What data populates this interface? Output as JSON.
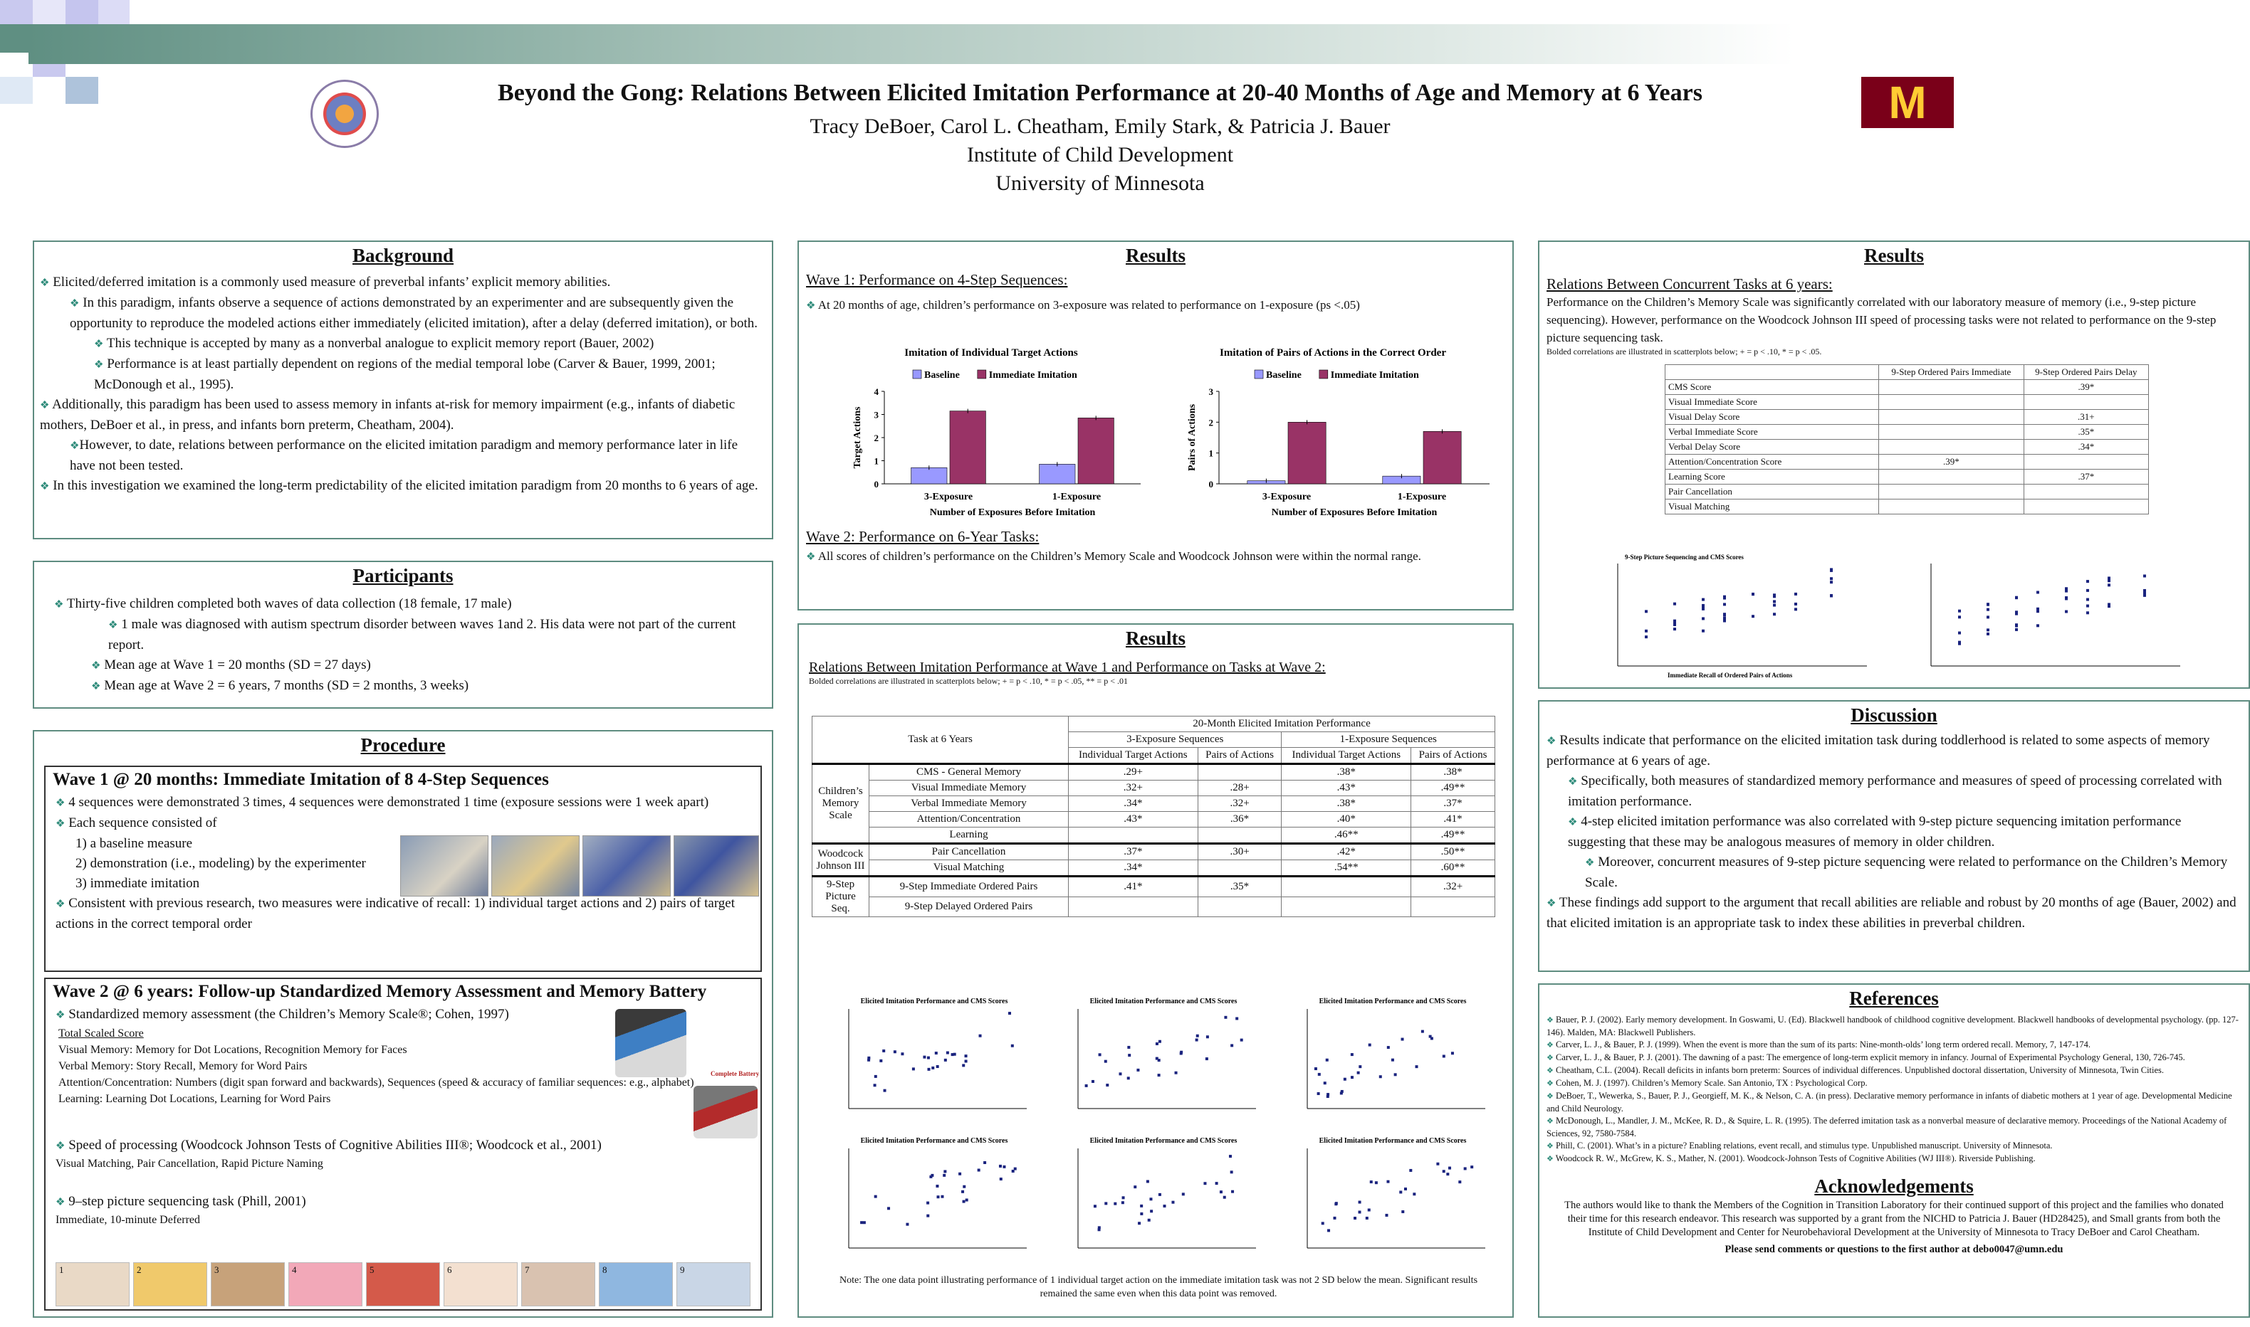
{
  "header": {
    "title": "Beyond the Gong: Relations Between Elicited Imitation Performance at 20-40 Months of Age and Memory at 6 Years",
    "authors": "Tracy DeBoer, Carol L. Cheatham, Emily Stark, & Patricia J. Bauer",
    "institute": "Institute of Child Development",
    "university": "University of Minnesota",
    "logo_right": "M"
  },
  "background": {
    "heading": "Background",
    "items": [
      "Elicited/deferred imitation is a commonly used measure of preverbal infants’ explicit memory abilities.",
      "In this paradigm, infants observe a sequence of actions demonstrated by an experimenter and are subsequently given the opportunity to reproduce the modeled actions either immediately (elicited imitation), after a delay (deferred imitation), or both.",
      "This technique is accepted by many as a nonverbal analogue to explicit memory report (Bauer, 2002)",
      "Performance is at least partially dependent on regions of the medial temporal lobe (Carver & Bauer, 1999, 2001; McDonough et al., 1995).",
      "Additionally, this paradigm has been used to assess memory in infants at-risk for memory impairment (e.g., infants of diabetic mothers, DeBoer et al., in press, and infants born preterm, Cheatham, 2004).",
      "However, to date, relations between performance on the elicited imitation paradigm and memory performance later in life have not been tested.",
      "In this investigation we examined the long-term predictability of the elicited imitation paradigm from 20 months to 6 years of age."
    ]
  },
  "participants": {
    "heading": "Participants",
    "items": [
      "Thirty-five children completed both waves of data collection (18 female, 17 male)",
      "1 male was diagnosed with autism spectrum disorder between waves 1and 2. His data were not part of the current report.",
      "Mean age at Wave 1 = 20 months (SD = 27 days)",
      "Mean age at Wave 2 =  6 years, 7 months (SD = 2 months, 3 weeks)"
    ]
  },
  "procedure": {
    "heading": "Procedure",
    "wave1": {
      "heading": "Wave 1 @ 20 months: Immediate Imitation of  8 4-Step Sequences",
      "items": [
        "4 sequences were demonstrated 3 times, 4 sequences were demonstrated 1 time (exposure sessions were 1 week apart)",
        "Each sequence consisted of",
        "1)  a baseline measure",
        "2)  demonstration (i.e., modeling) by the experimenter",
        "3)  immediate imitation",
        "Consistent with previous research, two measures were indicative of  recall: 1) individual target actions and 2) pairs of  target actions in the correct temporal order"
      ]
    },
    "wave2": {
      "heading": "Wave 2 @ 6 years: Follow-up Standardized Memory Assessment and Memory Battery",
      "item1": "Standardized memory assessment (the Children’s Memory Scale®; Cohen, 1997)",
      "lines": [
        "Total Scaled Score",
        "Visual Memory:  Memory for Dot Locations, Recognition Memory for Faces",
        "Verbal Memory:  Story Recall, Memory for Word Pairs",
        "Attention/Concentration:  Numbers (digit span forward and backwards), Sequences (speed & accuracy of familiar sequences: e.g., alphabet)",
        "Learning:  Learning Dot Locations, Learning for Word Pairs"
      ],
      "item2": "Speed of processing (Woodcock Johnson Tests of Cognitive Abilities III®; Woodcock et al., 2001)",
      "item2_sub": "Visual Matching, Pair Cancellation, Rapid Picture Naming",
      "item3": "9–step picture sequencing task (Phill, 2001)",
      "item3_sub": "Immediate, 10-minute Deferred",
      "kit_caption": "Complete Battery",
      "step_numbers": [
        "1",
        "2",
        "3",
        "4",
        "5",
        "6",
        "7",
        "8",
        "9"
      ]
    }
  },
  "results1": {
    "heading": "Results",
    "wave1_heading": "Wave 1:  Performance on 4-Step Sequences:",
    "wave1_item": "At 20 months of age, children’s performance on 3-exposure was related to performance on 1-exposure (ps <.05)",
    "wave2_heading": "Wave 2:  Performance on 6-Year Tasks:",
    "wave2_item": "All scores of children’s performance on the Children’s Memory Scale and Woodcock Johnson were within the normal range."
  },
  "chart_data": [
    {
      "type": "bar",
      "title": "Imitation of Individual Target Actions",
      "xlabel": "Number of Exposures Before Imitation",
      "ylabel": "Target Actions",
      "categories": [
        "3-Exposure",
        "1-Exposure"
      ],
      "series": [
        {
          "name": "Baseline",
          "values": [
            0.7,
            0.85
          ]
        },
        {
          "name": "Immediate Imitation",
          "values": [
            3.15,
            2.85
          ]
        }
      ],
      "ylim": [
        0,
        4
      ],
      "yticks": [
        "0",
        "1",
        "2",
        "3",
        "4"
      ],
      "colors": [
        "#9999ff",
        "#993366"
      ],
      "legend": "top"
    },
    {
      "type": "bar",
      "title": "Imitation of Pairs of Actions in the Correct Order",
      "xlabel": "Number of Exposures Before Imitation",
      "ylabel": "Pairs of Actions",
      "categories": [
        "3-Exposure",
        "1-Exposure"
      ],
      "series": [
        {
          "name": "Baseline",
          "values": [
            0.1,
            0.25
          ]
        },
        {
          "name": "Immediate Imitation",
          "values": [
            2.0,
            1.7
          ]
        }
      ],
      "ylim": [
        0,
        3
      ],
      "yticks": [
        "0",
        "1",
        "2",
        "3"
      ],
      "colors": [
        "#9999ff",
        "#993366"
      ],
      "legend": "top"
    }
  ],
  "results2": {
    "heading": "Results",
    "subheading": "Relations Between Imitation Performance at Wave 1 and Performance on Tasks at Wave 2:",
    "note": "Bolded correlations are illustrated in scatterplots below; + = p < .10, * = p < .05, ** = p < .01",
    "table": {
      "col_task": "Task at 6 Years",
      "col_group": "20-Month Elicited Imitation Performance",
      "col_3exp": "3-Exposure Sequences",
      "col_1exp": "1-Exposure Sequences",
      "col_ind": "Individual Target Actions",
      "col_pairs": "Pairs of Actions",
      "groups": [
        {
          "name": "Children’s Memory Scale",
          "rows": [
            {
              "task": "CMS - General Memory",
              "v": [
                ".29+",
                "",
                ".38*",
                ".38*"
              ]
            },
            {
              "task": "Visual Immediate Memory",
              "v": [
                ".32+",
                ".28+",
                ".43*",
                ".49**"
              ]
            },
            {
              "task": "Verbal Immediate Memory",
              "v": [
                ".34*",
                ".32+",
                ".38*",
                ".37*"
              ]
            },
            {
              "task": "Attention/Concentration",
              "v": [
                ".43*",
                ".36*",
                ".40*",
                ".41*"
              ]
            },
            {
              "task": "Learning",
              "v": [
                "",
                "",
                ".46**",
                ".49**"
              ]
            }
          ]
        },
        {
          "name": "Woodcock Johnson III",
          "rows": [
            {
              "task": "Pair Cancellation",
              "v": [
                ".37*",
                ".30+",
                ".42*",
                ".50**"
              ]
            },
            {
              "task": "Visual Matching",
              "v": [
                ".34*",
                "",
                ".54**",
                ".60**"
              ]
            }
          ]
        },
        {
          "name": "9-Step Picture Seq.",
          "rows": [
            {
              "task": "9-Step Immediate Ordered Pairs",
              "v": [
                ".41*",
                ".35*",
                "",
                ".32+"
              ]
            },
            {
              "task": "9-Step Delayed Ordered Pairs",
              "v": [
                "",
                "",
                "",
                ""
              ]
            }
          ]
        }
      ]
    },
    "scatter_titles": [
      "Elicited Imitation Performance and CMS Scores",
      "Elicited Imitation Performance and CMS Scores",
      "Elicited Imitation Performance and CMS Scores",
      "Elicited Imitation Performance and CMS Scores",
      "Elicited Imitation Performance and CMS Scores",
      "Elicited Imitation Performance and CMS Scores"
    ],
    "bottom_note": "Note:  The one data point illustrating performance of 1 individual target action on the immediate imitation task was not 2 SD below the mean. Significant results remained the same even when this data point was removed."
  },
  "results3": {
    "heading": "Results",
    "subheading": "Relations Between Concurrent Tasks at 6 years:",
    "text": "Performance on the Children’s Memory Scale was significantly correlated with our laboratory measure of memory (i.e., 9-step picture sequencing).  However, performance on the Woodcock Johnson III speed of processing tasks were not related to performance on the 9-step picture sequencing task.",
    "note": "Bolded correlations are illustrated in scatterplots below; + = p < .10, * = p < .05.",
    "table": {
      "col1": "9-Step Ordered Pairs Immediate",
      "col2": "9-Step Ordered Pairs Delay",
      "rows": [
        {
          "task": "CMS Score",
          "v": [
            "",
            ".39*"
          ]
        },
        {
          "task": "Visual Immediate Score",
          "v": [
            "",
            ""
          ]
        },
        {
          "task": "Visual Delay Score",
          "v": [
            "",
            ".31+"
          ]
        },
        {
          "task": "Verbal Immediate Score",
          "v": [
            "",
            ".35*"
          ]
        },
        {
          "task": "Verbal Delay Score",
          "v": [
            "",
            ".34*"
          ]
        },
        {
          "task": "Attention/Concentration  Score",
          "v": [
            ".39*",
            ""
          ]
        },
        {
          "task": "Learning Score",
          "v": [
            "",
            ".37*"
          ]
        },
        {
          "task": "Pair Cancellation",
          "v": [
            "",
            ""
          ]
        },
        {
          "task": "Visual  Matching",
          "v": [
            "",
            ""
          ]
        }
      ]
    },
    "scatter_title_1": "9-Step Picture Sequencing and CMS Scores",
    "scatter_xlabel_1": "Immediate Recall of Ordered Pairs of Actions"
  },
  "discussion": {
    "heading": "Discussion",
    "items": [
      "Results indicate that performance on the elicited imitation task during toddlerhood is related to some aspects of memory performance at 6 years of age.",
      "Specifically, both measures of standardized memory performance and measures of  speed of processing correlated with imitation performance.",
      "4-step elicited imitation performance was also correlated with 9-step picture sequencing imitation performance suggesting that these may be analogous measures of memory in older children.",
      "Moreover, concurrent measures of 9-step picture sequencing were related to performance on the Children’s Memory Scale.",
      "These findings add support to the argument that recall abilities are reliable and robust by 20 months of age (Bauer, 2002) and that elicited imitation is an appropriate task to index these abilities in preverbal children."
    ]
  },
  "references": {
    "heading": "References",
    "items": [
      "Bauer, P. J. (2002). Early memory development. In Goswami, U. (Ed). Blackwell handbook of childhood cognitive development. Blackwell handbooks of developmental psychology. (pp. 127-146). Malden, MA: Blackwell Publishers.",
      "Carver, L. J., & Bauer, P. J. (1999). When the event is more than the sum of its parts: Nine-month-olds’ long term ordered recall. Memory, 7, 147-174.",
      "Carver, L. J., & Bauer, P. J. (2001). The dawning of a past: The emergence of long-term explicit memory in infancy. Journal of Experimental Psychology General, 130, 726-745.",
      "Cheatham, C.L. (2004). Recall deficits in infants born preterm: Sources of individual differences.  Unpublished doctoral dissertation, University of Minnesota, Twin Cities.",
      "Cohen, M. J. (1997). Children’s Memory Scale. San Antonio, TX : Psychological Corp.",
      "DeBoer, T., Wewerka, S., Bauer, P. J., Georgieff, M. K., & Nelson, C. A. (in press). Declarative memory performance in infants of diabetic mothers at 1 year of age. Developmental Medicine and Child Neurology.",
      "McDonough, L., Mandler, J. M., McKee, R. D., & Squire, L. R. (1995).  The deferred imitation task as a nonverbal measure of declarative memory. Proceedings of the National Academy of Sciences, 92, 7580-7584.",
      "Phill, C. (2001). What’s in a picture? Enabling relations, event recall, and stimulus type. Unpublished manuscript. University of Minnesota.",
      "Woodcock R. W., McGrew, K. S., Mather, N. (2001). Woodcock-Johnson Tests of Cognitive Abilities (WJ III®). Riverside Publishing."
    ]
  },
  "acknowledgements": {
    "heading": "Acknowledgements",
    "text": "The authors would like to thank the Members of the Cognition in Transition Laboratory for their continued support of this project and the families who donated their time for this research endeavor. This research was supported by a grant from the NICHD to Patricia J. Bauer (HD28425), and Small grants from both the Institute of Child Development and Center for Neurobehavioral Development at the University of Minnesota to Tracy DeBoer and Carol Cheatham.",
    "contact": "Please send comments or questions to the first author at debo0047@umn.edu"
  }
}
